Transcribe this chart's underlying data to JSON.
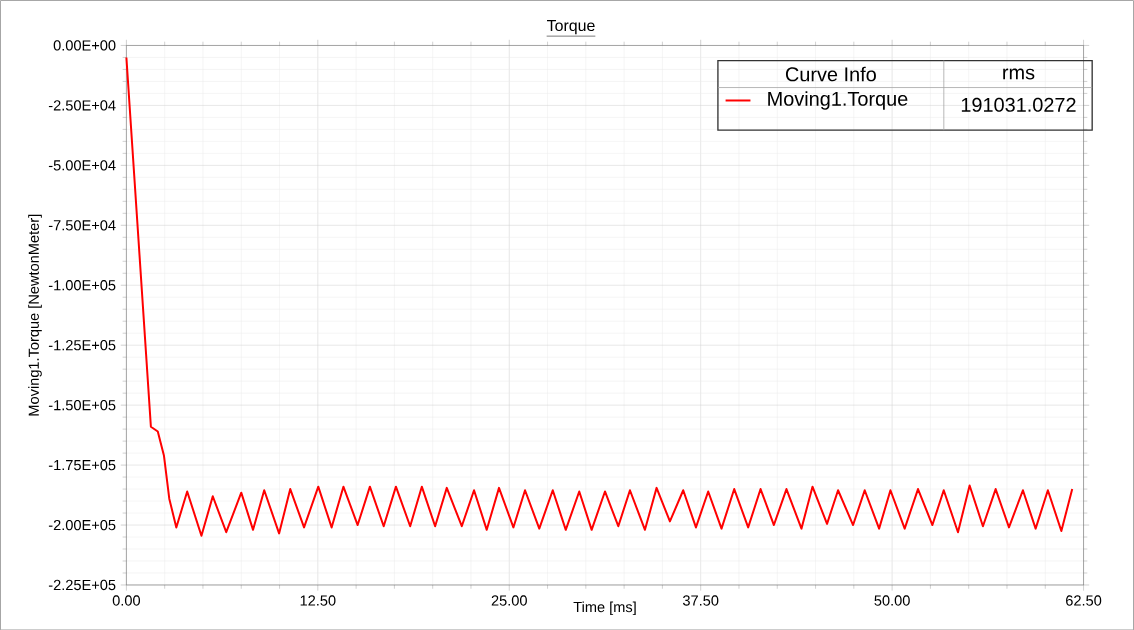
{
  "chart_data": {
    "type": "line",
    "title": "Torque",
    "xlabel": "Time [ms]",
    "ylabel": "Moving1.Torque [NewtonMeter]",
    "legend_title": "Curve Info",
    "annotations": [
      "rms",
      "191031.0272"
    ],
    "legend": "top right",
    "grid": true,
    "line_style": "solid",
    "xlim": [
      0,
      62.5
    ],
    "ylim": [
      -225000,
      0
    ],
    "xticks": [
      {
        "value": 0,
        "label": "0.00"
      },
      {
        "value": 12.5,
        "label": "12.50"
      },
      {
        "value": 25,
        "label": "25.00"
      },
      {
        "value": 37.5,
        "label": "37.50"
      },
      {
        "value": 50,
        "label": "50.00"
      },
      {
        "value": 62.5,
        "label": "62.50"
      }
    ],
    "yticks": [
      {
        "value": 0,
        "label": "0.00E+00"
      },
      {
        "value": -25000,
        "label": "-2.50E+04"
      },
      {
        "value": -50000,
        "label": "-5.00E+04"
      },
      {
        "value": -75000,
        "label": "-7.50E+04"
      },
      {
        "value": -100000,
        "label": "-1.00E+05"
      },
      {
        "value": -125000,
        "label": "-1.25E+05"
      },
      {
        "value": -150000,
        "label": "-1.50E+05"
      },
      {
        "value": -175000,
        "label": "-1.75E+05"
      },
      {
        "value": -200000,
        "label": "-2.00E+05"
      },
      {
        "value": -225000,
        "label": "-2.25E+05"
      }
    ],
    "series": [
      {
        "name": "Moving1.Torque",
        "color": "#ff0000",
        "x": [
          0,
          1.6,
          2.05,
          2.45,
          2.8,
          3.26,
          3.97,
          4.9,
          5.64,
          6.52,
          7.5,
          8.27,
          9.0,
          9.97,
          10.7,
          11.6,
          12.53,
          13.4,
          14.17,
          15.1,
          15.9,
          16.8,
          17.6,
          18.53,
          19.29,
          20.16,
          20.92,
          21.9,
          22.7,
          23.53,
          24.33,
          25.27,
          26.03,
          26.96,
          27.84,
          28.69,
          29.57,
          30.38,
          31.25,
          32.12,
          32.88,
          33.86,
          34.62,
          35.49,
          36.36,
          37.19,
          37.99,
          38.86,
          39.69,
          40.6,
          41.41,
          42.28,
          43.1,
          44.08,
          44.8,
          45.75,
          46.47,
          47.45,
          48.21,
          49.15,
          49.89,
          50.82,
          51.69,
          52.63,
          53.37,
          54.3,
          55.06,
          55.93,
          56.76,
          57.63,
          58.54,
          59.37,
          60.17,
          61.05,
          61.76
        ],
        "values": [
          -5000,
          -159000,
          -161000,
          -171000,
          -189000,
          -201000,
          -186000,
          -204500,
          -188000,
          -203000,
          -186500,
          -202000,
          -185500,
          -203500,
          -185000,
          -201000,
          -184000,
          -201000,
          -184000,
          -200000,
          -184000,
          -200500,
          -184000,
          -200500,
          -184000,
          -200500,
          -184500,
          -200500,
          -185500,
          -202000,
          -184500,
          -201000,
          -185500,
          -201500,
          -185500,
          -202000,
          -186000,
          -202000,
          -186000,
          -200500,
          -185500,
          -202000,
          -184500,
          -198500,
          -185500,
          -201000,
          -186000,
          -201500,
          -185000,
          -201000,
          -185000,
          -200000,
          -185000,
          -201500,
          -184000,
          -199500,
          -185500,
          -200000,
          -185500,
          -201500,
          -185500,
          -201500,
          -185000,
          -200000,
          -185500,
          -203000,
          -183500,
          -200500,
          -185000,
          -201000,
          -185500,
          -201500,
          -185500,
          -202500,
          -185000
        ]
      }
    ]
  }
}
